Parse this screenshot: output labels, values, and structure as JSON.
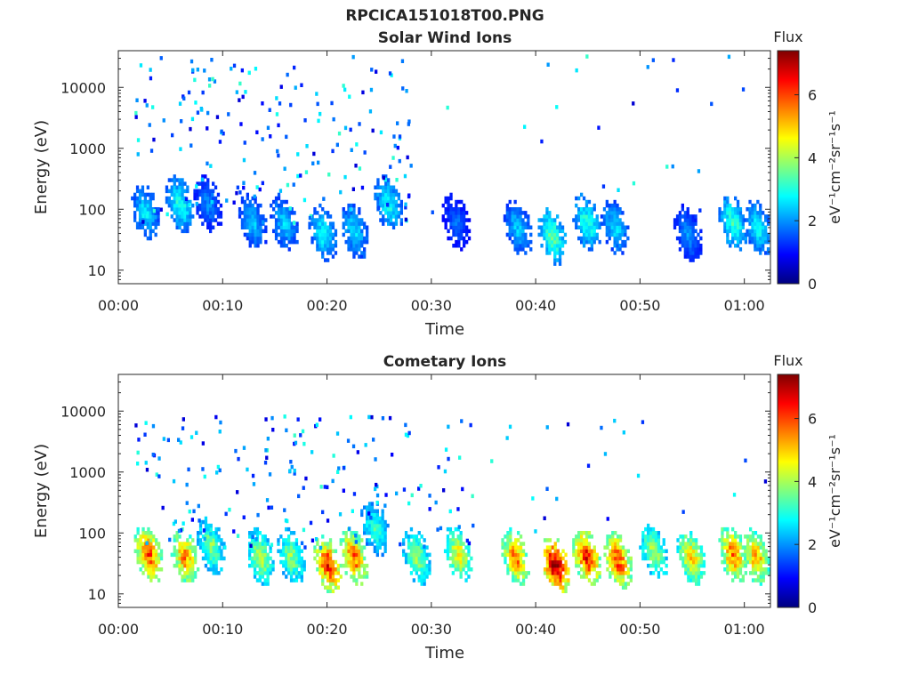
{
  "figure_title": "RPCICA151018T00.PNG",
  "colormap": [
    "#00007f",
    "#0000ff",
    "#007fff",
    "#00ffff",
    "#7fff7f",
    "#ffff00",
    "#ff7f00",
    "#ff0000",
    "#7f0000"
  ],
  "chart_data": [
    {
      "type": "heatmap",
      "title": "Solar Wind Ions",
      "xlabel": "Time",
      "ylabel": "Energy (eV)",
      "x_unit": "minutes",
      "xlim": [
        0,
        62.5
      ],
      "x_ticks": [
        0,
        10,
        20,
        30,
        40,
        50,
        60
      ],
      "x_tick_labels": [
        "00:00",
        "00:10",
        "00:20",
        "00:30",
        "00:40",
        "00:50",
        "01:00"
      ],
      "y_scale": "log",
      "ylim": [
        6,
        40000
      ],
      "y_ticks": [
        10,
        100,
        1000,
        10000
      ],
      "y_tick_labels": [
        "10",
        "100",
        "1000",
        "10000"
      ],
      "colorbar": {
        "title": "Flux",
        "label": "eV⁻¹cm⁻²sr⁻¹s⁻¹",
        "range": [
          0,
          7.4
        ],
        "ticks": [
          0,
          2,
          4,
          6
        ],
        "tick_labels": [
          "0",
          "2",
          "4",
          "6"
        ]
      },
      "bursts": [
        {
          "t": 2.5,
          "e": 90,
          "flux": 2.4
        },
        {
          "t": 5.8,
          "e": 120,
          "flux": 2.8
        },
        {
          "t": 8.5,
          "e": 120,
          "flux": 1.8
        },
        {
          "t": 12.8,
          "e": 60,
          "flux": 2.2
        },
        {
          "t": 15.8,
          "e": 60,
          "flux": 2.3
        },
        {
          "t": 19.5,
          "e": 40,
          "flux": 2.6
        },
        {
          "t": 22.5,
          "e": 45,
          "flux": 2.4
        },
        {
          "t": 25.8,
          "e": 120,
          "flux": 2.7
        },
        {
          "t": 32.3,
          "e": 60,
          "flux": 1.6
        },
        {
          "t": 38.2,
          "e": 50,
          "flux": 2.3
        },
        {
          "t": 41.5,
          "e": 35,
          "flux": 3.2
        },
        {
          "t": 44.8,
          "e": 60,
          "flux": 2.9
        },
        {
          "t": 47.5,
          "e": 50,
          "flux": 2.4
        },
        {
          "t": 54.5,
          "e": 40,
          "flux": 1.9
        },
        {
          "t": 58.8,
          "e": 60,
          "flux": 3.0
        },
        {
          "t": 61.2,
          "e": 50,
          "flux": 2.6
        }
      ],
      "scatter_emax": 35000,
      "scatter_tmax": 28
    },
    {
      "type": "heatmap",
      "title": "Cometary Ions",
      "xlabel": "Time",
      "ylabel": "Energy (eV)",
      "x_unit": "minutes",
      "xlim": [
        0,
        62.5
      ],
      "x_ticks": [
        0,
        10,
        20,
        30,
        40,
        50,
        60
      ],
      "x_tick_labels": [
        "00:00",
        "00:10",
        "00:20",
        "00:30",
        "00:40",
        "00:50",
        "01:00"
      ],
      "y_scale": "log",
      "ylim": [
        6,
        40000
      ],
      "y_ticks": [
        10,
        100,
        1000,
        10000
      ],
      "y_tick_labels": [
        "10",
        "100",
        "1000",
        "10000"
      ],
      "colorbar": {
        "title": "Flux",
        "label": "eV⁻¹cm⁻²sr⁻¹s⁻¹",
        "range": [
          0,
          7.4
        ],
        "ticks": [
          0,
          2,
          4,
          6
        ],
        "tick_labels": [
          "0",
          "2",
          "4",
          "6"
        ]
      },
      "bursts": [
        {
          "t": 2.8,
          "e": 45,
          "flux": 5.6
        },
        {
          "t": 6.3,
          "e": 40,
          "flux": 5.2
        },
        {
          "t": 8.8,
          "e": 60,
          "flux": 3.6
        },
        {
          "t": 13.5,
          "e": 40,
          "flux": 3.9
        },
        {
          "t": 16.5,
          "e": 40,
          "flux": 3.6
        },
        {
          "t": 20.0,
          "e": 30,
          "flux": 6.0
        },
        {
          "t": 22.5,
          "e": 40,
          "flux": 5.5
        },
        {
          "t": 24.5,
          "e": 120,
          "flux": 3.1
        },
        {
          "t": 28.5,
          "e": 40,
          "flux": 3.7
        },
        {
          "t": 32.5,
          "e": 45,
          "flux": 4.4
        },
        {
          "t": 38.0,
          "e": 40,
          "flux": 5.3
        },
        {
          "t": 41.8,
          "e": 30,
          "flux": 6.8
        },
        {
          "t": 44.8,
          "e": 40,
          "flux": 6.0
        },
        {
          "t": 47.8,
          "e": 35,
          "flux": 5.7
        },
        {
          "t": 51.2,
          "e": 50,
          "flux": 3.9
        },
        {
          "t": 54.8,
          "e": 40,
          "flux": 4.7
        },
        {
          "t": 58.8,
          "e": 45,
          "flux": 5.4
        },
        {
          "t": 61.0,
          "e": 40,
          "flux": 5.0
        }
      ],
      "scatter_emax": 9000,
      "scatter_tmax": 34
    }
  ]
}
